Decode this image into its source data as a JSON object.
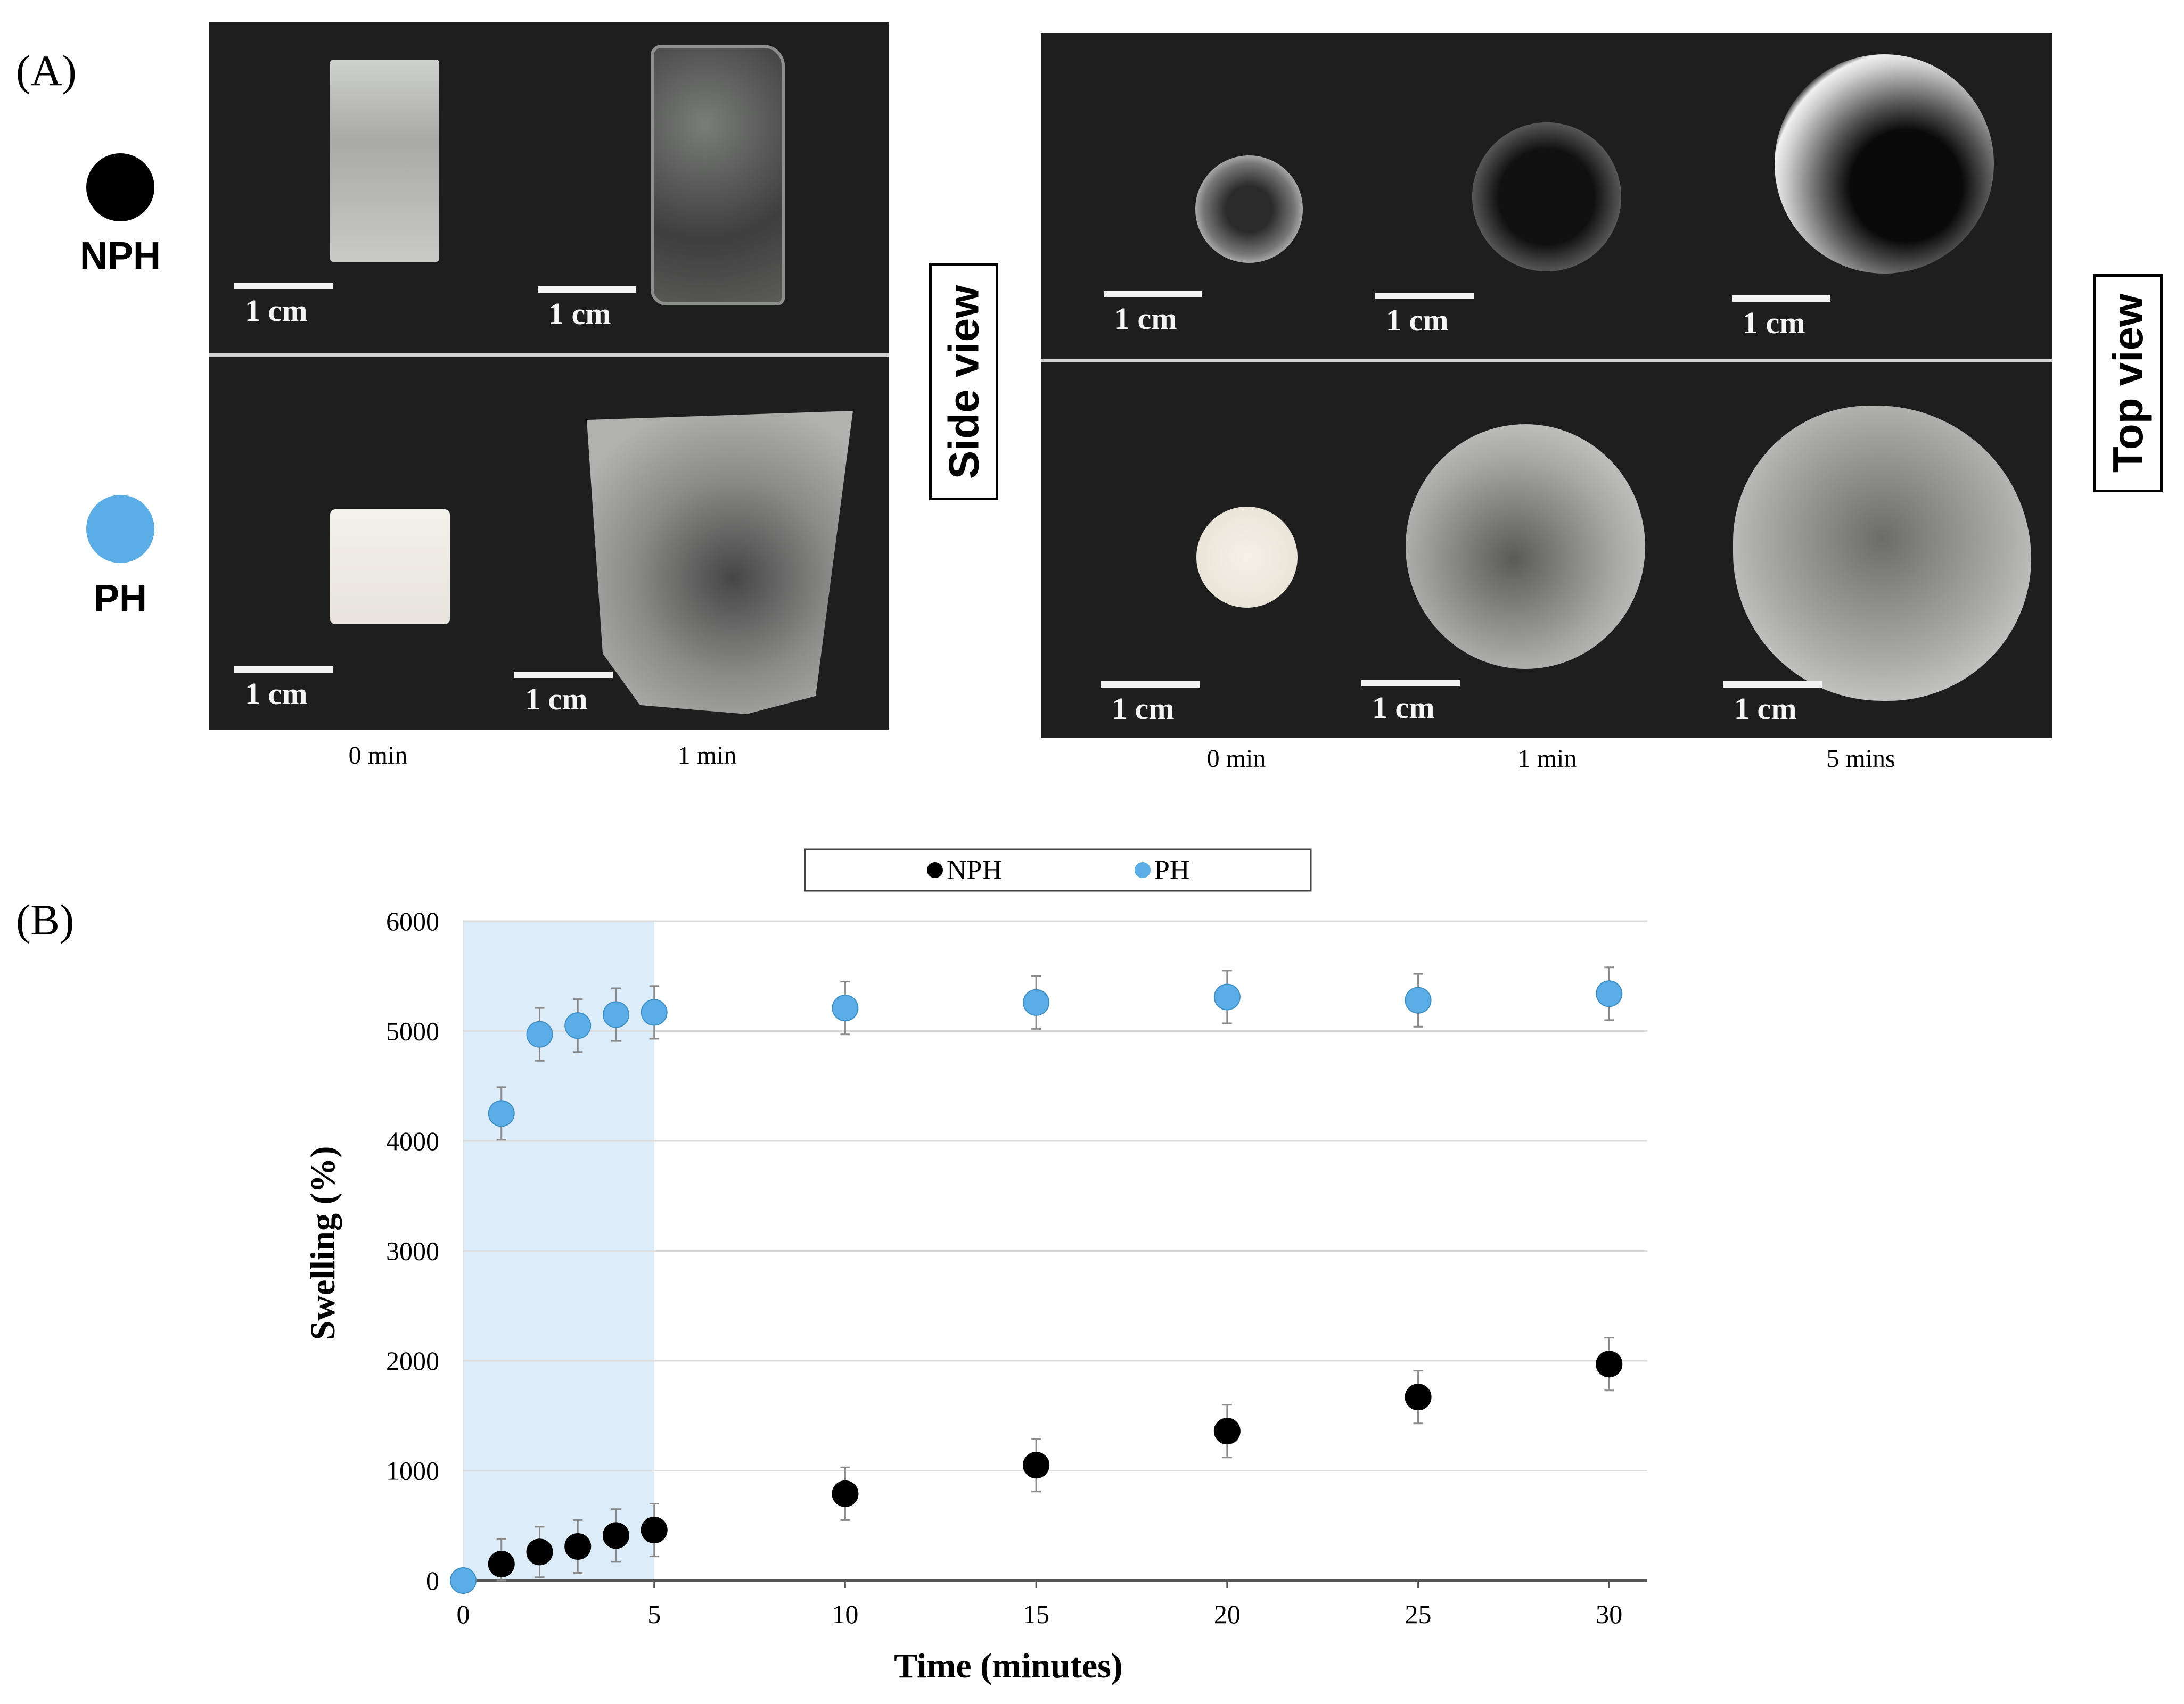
{
  "panel_a": {
    "label": "(A)",
    "materials": {
      "nph": {
        "label": "NPH",
        "color": "#000000"
      },
      "ph": {
        "label": "PH",
        "color": "#5aaee5"
      }
    },
    "scale_label": "1 cm",
    "side_view": {
      "title": "Side view",
      "times": [
        "0 min",
        "1 min"
      ]
    },
    "top_view": {
      "title": "Top view",
      "times": [
        "0 min",
        "1 min",
        "5 mins"
      ]
    }
  },
  "panel_b": {
    "label": "(B)"
  },
  "chart_data": {
    "type": "scatter",
    "title": "",
    "xlabel": "Time (minutes)",
    "ylabel": "Swelling (%)",
    "xlim": [
      0,
      31
    ],
    "ylim": [
      0,
      6000
    ],
    "x_ticks": [
      0,
      5,
      10,
      15,
      20,
      25,
      30
    ],
    "y_ticks": [
      0,
      1000,
      2000,
      3000,
      4000,
      5000,
      6000
    ],
    "grid": "horizontal",
    "legend_position": "top-center",
    "highlight_region": {
      "x_from": 0,
      "x_to": 5,
      "color": "#dcedf9"
    },
    "series": [
      {
        "name": "NPH",
        "color": "#000000",
        "x": [
          0,
          1,
          2,
          3,
          4,
          5,
          10,
          15,
          20,
          25,
          30
        ],
        "values": [
          0,
          150,
          260,
          310,
          410,
          460,
          790,
          1050,
          1360,
          1670,
          1970
        ],
        "error": [
          0,
          230,
          230,
          240,
          240,
          240,
          240,
          240,
          240,
          240,
          240
        ]
      },
      {
        "name": "PH",
        "color": "#5aaee5",
        "x": [
          0,
          1,
          2,
          3,
          4,
          5,
          10,
          15,
          20,
          25,
          30
        ],
        "values": [
          0,
          4250,
          4970,
          5050,
          5150,
          5170,
          5210,
          5260,
          5310,
          5280,
          5340
        ],
        "error": [
          0,
          240,
          240,
          240,
          240,
          240,
          240,
          240,
          240,
          240,
          240
        ]
      }
    ]
  }
}
